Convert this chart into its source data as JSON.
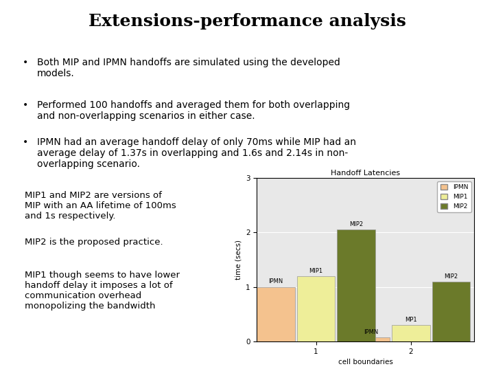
{
  "title": "Extensions-performance analysis",
  "bullets": [
    "Both MIP and IPMN handoffs are simulated using the developed\nmodels.",
    "Performed 100 handoffs and averaged them for both overlapping\nand non-overlapping scenarios in either case.",
    "IPMN had an average handoff delay of only 70ms while MIP had an\naverage delay of 1.37s in overlapping and 1.6s and 2.14s in non-\noverlapping scenario."
  ],
  "side_texts": [
    "MIP1 and MIP2 are versions of\nMIP with an AA lifetime of 100ms\nand 1s respectively.",
    "MIP2 is the proposed practice.",
    "MIP1 though seems to have lower\nhandoff delay it imposes a lot of\ncommunication overhead\nmonopolizing the bandwidth"
  ],
  "chart_title": "Handoff Latencies",
  "chart_xlabel": "cell boundaries",
  "chart_ylabel": "time (secs)",
  "categories": [
    1,
    2
  ],
  "series": {
    "IPMN": [
      1.0,
      0.07
    ],
    "MIP1": [
      1.2,
      0.3
    ],
    "MIP2": [
      2.05,
      1.1
    ]
  },
  "bar_labels": {
    "IPMN": [
      "IPMN",
      "IPMN"
    ],
    "MIP1": [
      "MIP1",
      "MP1"
    ],
    "MIP2": [
      "MIP2",
      "MIP2"
    ]
  },
  "colors": {
    "IPMN": "#F4C28E",
    "MIP1": "#EEEE99",
    "MIP2": "#6B7A2A"
  },
  "legend_labels": [
    "IPMN",
    "MIP1",
    "MIP2"
  ],
  "ylim": [
    0,
    3
  ],
  "yticks": [
    0,
    1,
    2,
    3
  ],
  "bar_width": 0.18,
  "background_color": "#ffffff",
  "chart_bg": "#e8e8e8",
  "title_fontsize": 18,
  "bullet_fontsize": 10,
  "side_fontsize": 9.5
}
